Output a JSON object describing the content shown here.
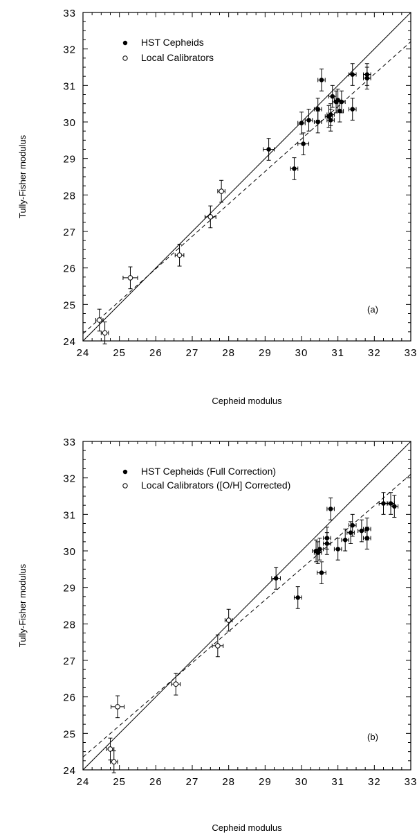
{
  "chart_data": [
    {
      "type": "scatter",
      "panel_label": "(a)",
      "xlabel": "Cepheid modulus",
      "ylabel": "Tully-Fisher modulus",
      "xlim": [
        24,
        33
      ],
      "ylim": [
        24,
        33
      ],
      "xticks": [
        "24",
        "25",
        "26",
        "27",
        "28",
        "29",
        "30",
        "31",
        "32",
        "33"
      ],
      "yticks": [
        "24",
        "25",
        "26",
        "27",
        "28",
        "29",
        "30",
        "31",
        "32",
        "33"
      ],
      "legend": [
        {
          "label": "HST Cepheids",
          "marker": "filled"
        },
        {
          "label": "Local Calibrators",
          "marker": "open"
        }
      ],
      "lines": [
        {
          "style": "solid",
          "x": [
            24,
            33
          ],
          "y": [
            24,
            33
          ]
        },
        {
          "style": "dashed",
          "x": [
            24,
            33
          ],
          "y": [
            24.2,
            32.2
          ]
        }
      ],
      "series": [
        {
          "name": "HST Cepheids",
          "marker": "filled",
          "points": [
            {
              "x": 29.1,
              "y": 29.25,
              "xerr": 0.15,
              "yerr": 0.3
            },
            {
              "x": 29.8,
              "y": 28.72,
              "xerr": 0.1,
              "yerr": 0.3
            },
            {
              "x": 30.05,
              "y": 29.4,
              "xerr": 0.15,
              "yerr": 0.3
            },
            {
              "x": 30.0,
              "y": 29.97,
              "xerr": 0.1,
              "yerr": 0.3
            },
            {
              "x": 30.2,
              "y": 30.05,
              "xerr": 0.1,
              "yerr": 0.3
            },
            {
              "x": 30.45,
              "y": 30.35,
              "xerr": 0.1,
              "yerr": 0.3
            },
            {
              "x": 30.45,
              "y": 30.0,
              "xerr": 0.1,
              "yerr": 0.3
            },
            {
              "x": 30.55,
              "y": 31.15,
              "xerr": 0.1,
              "yerr": 0.3
            },
            {
              "x": 30.75,
              "y": 30.15,
              "xerr": 0.1,
              "yerr": 0.3
            },
            {
              "x": 30.8,
              "y": 30.05,
              "xerr": 0.1,
              "yerr": 0.3
            },
            {
              "x": 30.8,
              "y": 30.2,
              "xerr": 0.1,
              "yerr": 0.3
            },
            {
              "x": 30.85,
              "y": 30.7,
              "xerr": 0.1,
              "yerr": 0.3
            },
            {
              "x": 30.95,
              "y": 30.55,
              "xerr": 0.1,
              "yerr": 0.3
            },
            {
              "x": 31.0,
              "y": 30.6,
              "xerr": 0.1,
              "yerr": 0.3
            },
            {
              "x": 31.05,
              "y": 30.3,
              "xerr": 0.1,
              "yerr": 0.3
            },
            {
              "x": 31.1,
              "y": 30.55,
              "xerr": 0.1,
              "yerr": 0.3
            },
            {
              "x": 31.4,
              "y": 30.35,
              "xerr": 0.1,
              "yerr": 0.3
            },
            {
              "x": 31.4,
              "y": 31.3,
              "xerr": 0.1,
              "yerr": 0.3
            },
            {
              "x": 31.8,
              "y": 31.3,
              "xerr": 0.1,
              "yerr": 0.3
            },
            {
              "x": 31.8,
              "y": 31.2,
              "xerr": 0.1,
              "yerr": 0.3
            }
          ]
        },
        {
          "name": "Local Calibrators",
          "marker": "open",
          "points": [
            {
              "x": 24.45,
              "y": 24.57,
              "xerr": 0.1,
              "yerr": 0.3
            },
            {
              "x": 24.6,
              "y": 24.22,
              "xerr": 0.1,
              "yerr": 0.3
            },
            {
              "x": 25.3,
              "y": 25.73,
              "xerr": 0.2,
              "yerr": 0.3
            },
            {
              "x": 26.65,
              "y": 26.35,
              "xerr": 0.12,
              "yerr": 0.3
            },
            {
              "x": 27.5,
              "y": 27.4,
              "xerr": 0.15,
              "yerr": 0.3
            },
            {
              "x": 27.8,
              "y": 28.1,
              "xerr": 0.1,
              "yerr": 0.3
            }
          ]
        }
      ]
    },
    {
      "type": "scatter",
      "panel_label": "(b)",
      "xlabel": "Cepheid modulus",
      "ylabel": "Tully-Fisher modulus",
      "xlim": [
        24,
        33
      ],
      "ylim": [
        24,
        33
      ],
      "xticks": [
        "24",
        "25",
        "26",
        "27",
        "28",
        "29",
        "30",
        "31",
        "32",
        "33"
      ],
      "yticks": [
        "24",
        "25",
        "26",
        "27",
        "28",
        "29",
        "30",
        "31",
        "32",
        "33"
      ],
      "legend": [
        {
          "label": "HST Cepheids (Full Correction)",
          "marker": "filled"
        },
        {
          "label": "Local Calibrators ([O/H] Corrected)",
          "marker": "open"
        }
      ],
      "lines": [
        {
          "style": "solid",
          "x": [
            24,
            33
          ],
          "y": [
            24,
            33
          ]
        },
        {
          "style": "dashed",
          "x": [
            24,
            33
          ],
          "y": [
            24.35,
            32.1
          ]
        }
      ],
      "series": [
        {
          "name": "HST Cepheids (Full Correction)",
          "marker": "filled",
          "points": [
            {
              "x": 29.3,
              "y": 29.25,
              "xerr": 0.12,
              "yerr": 0.3
            },
            {
              "x": 29.9,
              "y": 28.72,
              "xerr": 0.1,
              "yerr": 0.3
            },
            {
              "x": 30.4,
              "y": 30.0,
              "xerr": 0.1,
              "yerr": 0.3
            },
            {
              "x": 30.45,
              "y": 29.95,
              "xerr": 0.1,
              "yerr": 0.3
            },
            {
              "x": 30.5,
              "y": 30.05,
              "xerr": 0.1,
              "yerr": 0.3
            },
            {
              "x": 30.55,
              "y": 29.4,
              "xerr": 0.12,
              "yerr": 0.3
            },
            {
              "x": 30.7,
              "y": 30.2,
              "xerr": 0.1,
              "yerr": 0.3
            },
            {
              "x": 30.7,
              "y": 30.35,
              "xerr": 0.1,
              "yerr": 0.3
            },
            {
              "x": 30.8,
              "y": 31.15,
              "xerr": 0.1,
              "yerr": 0.3
            },
            {
              "x": 31.0,
              "y": 30.05,
              "xerr": 0.1,
              "yerr": 0.3
            },
            {
              "x": 31.2,
              "y": 30.3,
              "xerr": 0.1,
              "yerr": 0.3
            },
            {
              "x": 31.35,
              "y": 30.5,
              "xerr": 0.1,
              "yerr": 0.3
            },
            {
              "x": 31.4,
              "y": 30.7,
              "xerr": 0.1,
              "yerr": 0.3
            },
            {
              "x": 31.65,
              "y": 30.55,
              "xerr": 0.1,
              "yerr": 0.3
            },
            {
              "x": 31.8,
              "y": 30.6,
              "xerr": 0.1,
              "yerr": 0.3
            },
            {
              "x": 31.8,
              "y": 30.35,
              "xerr": 0.1,
              "yerr": 0.3
            },
            {
              "x": 32.25,
              "y": 31.3,
              "xerr": 0.12,
              "yerr": 0.3
            },
            {
              "x": 32.45,
              "y": 31.3,
              "xerr": 0.1,
              "yerr": 0.3
            },
            {
              "x": 32.55,
              "y": 31.22,
              "xerr": 0.1,
              "yerr": 0.3
            }
          ]
        },
        {
          "name": "Local Calibrators ([O/H] Corrected)",
          "marker": "open",
          "points": [
            {
              "x": 24.75,
              "y": 24.57,
              "xerr": 0.1,
              "yerr": 0.3
            },
            {
              "x": 24.85,
              "y": 24.22,
              "xerr": 0.1,
              "yerr": 0.3
            },
            {
              "x": 24.95,
              "y": 25.73,
              "xerr": 0.18,
              "yerr": 0.3
            },
            {
              "x": 26.55,
              "y": 26.35,
              "xerr": 0.12,
              "yerr": 0.3
            },
            {
              "x": 27.7,
              "y": 27.4,
              "xerr": 0.15,
              "yerr": 0.3
            },
            {
              "x": 28.0,
              "y": 28.1,
              "xerr": 0.1,
              "yerr": 0.3
            }
          ]
        }
      ]
    }
  ]
}
